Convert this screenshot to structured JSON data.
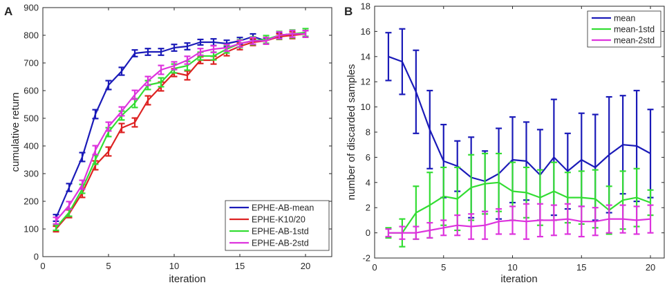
{
  "chart_data": [
    {
      "panel": "A",
      "type": "line",
      "xlabel": "iteration",
      "ylabel": "cumulative return",
      "xlim": [
        0,
        22
      ],
      "ylim": [
        0,
        900
      ],
      "xticks": [
        0,
        5,
        10,
        15,
        20
      ],
      "yticks": [
        0,
        100,
        200,
        300,
        400,
        500,
        600,
        700,
        800,
        900
      ],
      "legend_position": "bottom-right",
      "x": [
        1,
        2,
        3,
        4,
        5,
        6,
        7,
        8,
        9,
        10,
        11,
        12,
        13,
        14,
        15,
        16,
        17,
        18,
        19,
        20
      ],
      "series": [
        {
          "name": "EPHE-AB-mean",
          "color": "#1a1ab8",
          "values": [
            140,
            250,
            360,
            515,
            620,
            670,
            735,
            740,
            740,
            755,
            760,
            775,
            775,
            770,
            780,
            795,
            780,
            800,
            805,
            805
          ],
          "err": [
            12,
            14,
            16,
            16,
            16,
            14,
            12,
            12,
            12,
            12,
            12,
            10,
            12,
            12,
            12,
            10,
            10,
            10,
            12,
            12
          ]
        },
        {
          "name": "EPHE-K10/20",
          "color": "#dd2222",
          "values": [
            100,
            155,
            230,
            330,
            380,
            465,
            485,
            565,
            615,
            665,
            655,
            710,
            710,
            740,
            760,
            775,
            780,
            795,
            800,
            805
          ],
          "err": [
            10,
            14,
            16,
            16,
            16,
            16,
            16,
            16,
            16,
            14,
            16,
            12,
            14,
            14,
            12,
            12,
            12,
            10,
            12,
            12
          ]
        },
        {
          "name": "EPHE-AB-1std",
          "color": "#33dd33",
          "values": [
            105,
            160,
            245,
            350,
            450,
            510,
            555,
            620,
            630,
            680,
            690,
            725,
            725,
            750,
            770,
            780,
            785,
            800,
            805,
            810
          ],
          "err": [
            10,
            14,
            16,
            16,
            16,
            16,
            16,
            16,
            16,
            16,
            16,
            14,
            14,
            14,
            14,
            14,
            14,
            14,
            14,
            14
          ]
        },
        {
          "name": "EPHE-AB-2std",
          "color": "#dd33dd",
          "values": [
            130,
            185,
            260,
            385,
            470,
            525,
            585,
            635,
            675,
            690,
            710,
            740,
            750,
            755,
            770,
            780,
            780,
            800,
            805,
            805
          ],
          "err": [
            12,
            14,
            16,
            16,
            16,
            16,
            16,
            16,
            16,
            14,
            14,
            12,
            12,
            12,
            12,
            12,
            12,
            12,
            12,
            12
          ]
        }
      ]
    },
    {
      "panel": "B",
      "type": "line",
      "xlabel": "iteration",
      "ylabel": "number of discarded samples",
      "xlim": [
        0,
        21
      ],
      "ylim": [
        -2,
        18
      ],
      "xticks": [
        0,
        5,
        10,
        15,
        20
      ],
      "yticks": [
        -2,
        0,
        2,
        4,
        6,
        8,
        10,
        12,
        14,
        16,
        18
      ],
      "legend_position": "top-right",
      "x": [
        1,
        2,
        3,
        4,
        5,
        6,
        7,
        8,
        9,
        10,
        11,
        12,
        13,
        14,
        15,
        16,
        17,
        18,
        19,
        20
      ],
      "series": [
        {
          "name": "mean",
          "color": "#1a1ab8",
          "values": [
            14,
            13.6,
            11.2,
            8.2,
            5.7,
            5.3,
            4.4,
            4.1,
            4.7,
            5.8,
            5.7,
            4.6,
            6.0,
            4.9,
            5.8,
            5.2,
            6.2,
            7.0,
            6.9,
            6.3
          ],
          "err": [
            1.9,
            2.6,
            3.3,
            3.1,
            2.9,
            2.0,
            3.2,
            2.4,
            3.6,
            3.4,
            3.1,
            3.6,
            4.6,
            3.0,
            3.7,
            4.2,
            4.6,
            3.9,
            4.4,
            3.5
          ]
        },
        {
          "name": "mean-1std",
          "color": "#33dd33",
          "values": [
            0,
            0,
            1.6,
            2.2,
            2.9,
            2.7,
            3.6,
            3.9,
            4.0,
            3.3,
            3.2,
            2.8,
            3.3,
            2.8,
            2.8,
            2.7,
            1.8,
            2.6,
            2.8,
            2.4
          ],
          "err": [
            0.4,
            1.1,
            2.1,
            2.6,
            2.3,
            2.5,
            2.6,
            2.4,
            2.3,
            2.3,
            2.0,
            2.2,
            2.3,
            2.0,
            2.1,
            2.3,
            1.9,
            2.3,
            2.3,
            1.0
          ]
        },
        {
          "name": "mean-2std",
          "color": "#dd33dd",
          "values": [
            0,
            0,
            0,
            0.2,
            0.4,
            0.6,
            0.5,
            0.6,
            0.9,
            1.0,
            0.9,
            1.0,
            1.0,
            1.1,
            0.9,
            0.9,
            1.1,
            1.1,
            1.0,
            1.1
          ],
          "err": [
            0.3,
            0.5,
            0.5,
            0.6,
            0.6,
            0.8,
            1.0,
            1.1,
            1.0,
            1.1,
            1.4,
            1.3,
            1.2,
            1.2,
            1.2,
            1.1,
            1.1,
            1.1,
            1.1,
            1.1
          ]
        }
      ]
    }
  ]
}
